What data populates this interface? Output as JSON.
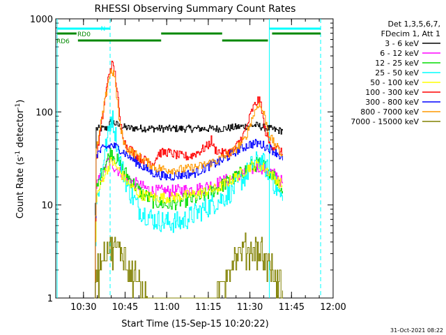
{
  "chart_data": {
    "type": "line",
    "title": "RHESSI Observing Summary Count Rates",
    "ylabel_main": "Count Rate (s",
    "ylabel_sup": "-1",
    "ylabel_mid": " detector",
    "ylabel_end": ")",
    "xlabel": "Start Time (15-Sep-15 10:20:22)",
    "timestamp": "31-Oct-2021 08:22",
    "y_scale": "log",
    "ylim": [
      1,
      1000
    ],
    "xlim_minutes_after_10_00": [
      20,
      120
    ],
    "y_ticks": [
      {
        "value": 1,
        "label": "1"
      },
      {
        "value": 10,
        "label": "10"
      },
      {
        "value": 100,
        "label": "100"
      },
      {
        "value": 1000,
        "label": "1000"
      }
    ],
    "x_ticks": [
      {
        "minute": 30,
        "label": "10:30"
      },
      {
        "minute": 45,
        "label": "10:45"
      },
      {
        "minute": 60,
        "label": "11:00"
      },
      {
        "minute": 75,
        "label": "11:15"
      },
      {
        "minute": 90,
        "label": "11:30"
      },
      {
        "minute": 105,
        "label": "11:45"
      },
      {
        "minute": 120,
        "label": "12:00"
      }
    ],
    "legend_header": [
      "Det 1,3,5,6,7,",
      "FDecim 1, Att 1"
    ],
    "legend_position": "right",
    "series": [
      {
        "name": "3 - 6 keV",
        "color": "#000000",
        "points": [
          [
            34,
            1
          ],
          [
            34.5,
            66
          ],
          [
            38,
            66
          ],
          [
            39,
            72
          ],
          [
            40,
            80
          ],
          [
            41,
            76
          ],
          [
            43,
            70
          ],
          [
            46,
            67
          ],
          [
            60,
            66
          ],
          [
            80,
            66
          ],
          [
            88,
            70
          ],
          [
            92,
            72
          ],
          [
            95,
            68
          ],
          [
            100,
            63
          ],
          [
            101.8,
            63
          ],
          [
            102,
            1
          ]
        ]
      },
      {
        "name": "6 - 12 keV",
        "color": "#ff00ff",
        "points": [
          [
            34,
            1
          ],
          [
            34.5,
            16
          ],
          [
            37,
            22
          ],
          [
            39,
            30
          ],
          [
            41,
            26
          ],
          [
            45,
            20
          ],
          [
            50,
            16
          ],
          [
            55,
            14
          ],
          [
            62,
            14
          ],
          [
            72,
            15
          ],
          [
            78,
            17
          ],
          [
            85,
            20
          ],
          [
            90,
            24
          ],
          [
            93,
            26
          ],
          [
            96,
            24
          ],
          [
            100,
            20
          ],
          [
            101.8,
            17
          ],
          [
            102,
            1
          ]
        ]
      },
      {
        "name": "12 - 25 keV",
        "color": "#00dd00",
        "points": [
          [
            34,
            1
          ],
          [
            34.5,
            14
          ],
          [
            37,
            25
          ],
          [
            40,
            38
          ],
          [
            42,
            30
          ],
          [
            45,
            22
          ],
          [
            50,
            14
          ],
          [
            55,
            11
          ],
          [
            60,
            10
          ],
          [
            65,
            11
          ],
          [
            72,
            12
          ],
          [
            78,
            15
          ],
          [
            85,
            20
          ],
          [
            90,
            26
          ],
          [
            93,
            28
          ],
          [
            96,
            25
          ],
          [
            100,
            18
          ],
          [
            101.8,
            14
          ],
          [
            102,
            1
          ]
        ]
      },
      {
        "name": "25 - 50 keV",
        "color": "#00ffff",
        "points": [
          [
            34,
            1
          ],
          [
            34.5,
            10
          ],
          [
            37,
            30
          ],
          [
            39,
            60
          ],
          [
            40,
            92
          ],
          [
            41,
            70
          ],
          [
            43,
            30
          ],
          [
            46,
            15
          ],
          [
            50,
            9
          ],
          [
            55,
            7
          ],
          [
            60,
            6.5
          ],
          [
            65,
            6.5
          ],
          [
            70,
            8
          ],
          [
            76,
            10
          ],
          [
            82,
            13
          ],
          [
            88,
            20
          ],
          [
            91,
            28
          ],
          [
            94,
            30
          ],
          [
            97,
            22
          ],
          [
            100,
            14
          ],
          [
            101.8,
            11
          ],
          [
            102,
            1
          ]
        ]
      },
      {
        "name": "50 - 100 keV",
        "color": "#ffff00",
        "points": [
          [
            34,
            1
          ],
          [
            34.5,
            12
          ],
          [
            37,
            20
          ],
          [
            40,
            30
          ],
          [
            42,
            25
          ],
          [
            46,
            17
          ],
          [
            50,
            13
          ],
          [
            56,
            12
          ],
          [
            62,
            12
          ],
          [
            70,
            13
          ],
          [
            78,
            15
          ],
          [
            85,
            20
          ],
          [
            90,
            26
          ],
          [
            93,
            27
          ],
          [
            96,
            24
          ],
          [
            100,
            18
          ],
          [
            101.8,
            16
          ],
          [
            102,
            1
          ]
        ]
      },
      {
        "name": "100 - 300 keV",
        "color": "#ff0000",
        "points": [
          [
            34,
            1
          ],
          [
            34.5,
            30
          ],
          [
            37,
            100
          ],
          [
            39,
            250
          ],
          [
            40,
            330
          ],
          [
            41,
            290
          ],
          [
            42,
            180
          ],
          [
            43,
            80
          ],
          [
            45,
            45
          ],
          [
            50,
            32
          ],
          [
            55,
            28
          ],
          [
            57,
            36
          ],
          [
            60,
            37
          ],
          [
            64,
            34
          ],
          [
            68,
            33
          ],
          [
            72,
            38
          ],
          [
            75,
            44
          ],
          [
            76,
            50
          ],
          [
            77,
            40
          ],
          [
            80,
            36
          ],
          [
            84,
            38
          ],
          [
            88,
            60
          ],
          [
            91,
            110
          ],
          [
            93,
            135
          ],
          [
            94,
            120
          ],
          [
            95,
            70
          ],
          [
            97,
            45
          ],
          [
            100,
            40
          ],
          [
            101.8,
            35
          ],
          [
            102,
            1
          ]
        ]
      },
      {
        "name": "300 - 800 keV",
        "color": "#0000ff",
        "points": [
          [
            34,
            1
          ],
          [
            34.5,
            35
          ],
          [
            37,
            40
          ],
          [
            40,
            44
          ],
          [
            43,
            40
          ],
          [
            47,
            32
          ],
          [
            51,
            26
          ],
          [
            55,
            22
          ],
          [
            60,
            20
          ],
          [
            65,
            21
          ],
          [
            70,
            22
          ],
          [
            75,
            26
          ],
          [
            80,
            30
          ],
          [
            85,
            38
          ],
          [
            90,
            45
          ],
          [
            93,
            46
          ],
          [
            96,
            42
          ],
          [
            100,
            36
          ],
          [
            101.8,
            30
          ],
          [
            102,
            1
          ]
        ]
      },
      {
        "name": "800 - 7000 keV",
        "color": "#ff9900",
        "points": [
          [
            34,
            1
          ],
          [
            34.5,
            38
          ],
          [
            37,
            100
          ],
          [
            39,
            230
          ],
          [
            40,
            280
          ],
          [
            41,
            250
          ],
          [
            42,
            140
          ],
          [
            43,
            70
          ],
          [
            45,
            42
          ],
          [
            48,
            36
          ],
          [
            52,
            30
          ],
          [
            56,
            25
          ],
          [
            60,
            24
          ],
          [
            66,
            24
          ],
          [
            72,
            26
          ],
          [
            78,
            30
          ],
          [
            84,
            38
          ],
          [
            88,
            50
          ],
          [
            91,
            90
          ],
          [
            93,
            125
          ],
          [
            95,
            95
          ],
          [
            97,
            55
          ],
          [
            100,
            40
          ],
          [
            101.8,
            34
          ],
          [
            102,
            1
          ]
        ]
      },
      {
        "name": "7000 - 15000 keV",
        "color": "#808000",
        "points": [
          [
            34,
            1
          ],
          [
            34.5,
            2
          ],
          [
            36,
            2.5
          ],
          [
            38,
            3.5
          ],
          [
            42,
            3.5
          ],
          [
            45,
            2.8
          ],
          [
            48,
            2
          ],
          [
            51,
            1.4
          ],
          [
            53,
            1
          ],
          [
            78,
            1
          ],
          [
            80,
            1.6
          ],
          [
            84,
            2.8
          ],
          [
            88,
            3.5
          ],
          [
            94,
            3.5
          ],
          [
            96,
            2.6
          ],
          [
            98,
            2
          ],
          [
            100,
            1.5
          ],
          [
            101.8,
            1.2
          ],
          [
            102,
            1
          ]
        ]
      }
    ],
    "annotations": [
      {
        "text": "N",
        "color": "#00ffff"
      },
      {
        "text": "RD0",
        "color": "#008800"
      },
      {
        "text": "RD6",
        "color": "#008800"
      }
    ],
    "night_markers": [
      {
        "minute": 20.5,
        "style": "solid",
        "color": "#00ffff"
      },
      {
        "minute": 39.6,
        "style": "dashed",
        "color": "#00ffff"
      },
      {
        "minute": 97.0,
        "style": "solid",
        "color": "#00ffff"
      },
      {
        "minute": 115.5,
        "style": "dashed",
        "color": "#00ffff"
      }
    ],
    "top_bars": [
      {
        "row": "N",
        "color": "#00ffff",
        "from": 20.5,
        "to": 39.6
      },
      {
        "row": "N",
        "color": "#00ffff",
        "from": 97.0,
        "to": 115.5
      },
      {
        "row": "RD0",
        "color": "#008800",
        "from": 20.5,
        "to": 27.5
      },
      {
        "row": "RD0",
        "color": "#008800",
        "from": 58.0,
        "to": 80.0
      },
      {
        "row": "RD0",
        "color": "#008800",
        "from": 98.0,
        "to": 115.5
      },
      {
        "row": "RD6",
        "color": "#008800",
        "from": 28.0,
        "to": 58.0
      },
      {
        "row": "RD6",
        "color": "#008800",
        "from": 80.0,
        "to": 96.5
      }
    ]
  }
}
